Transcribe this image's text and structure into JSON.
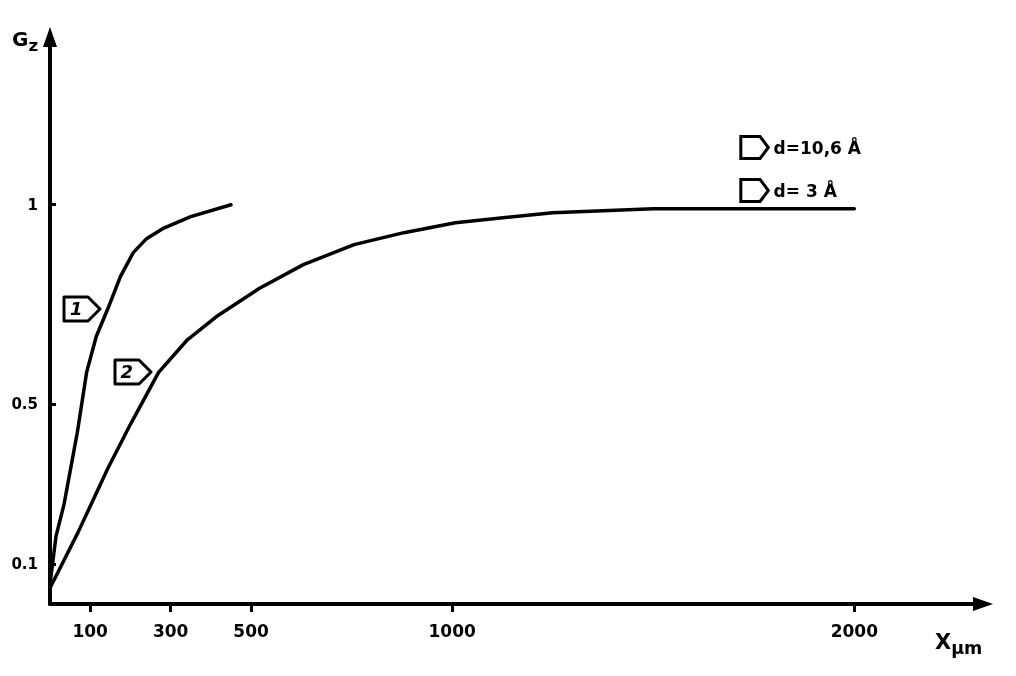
{
  "chart_data": {
    "type": "line",
    "xlabel": "X$_{μm}$",
    "ylabel": "G$_{z}$",
    "xlim": [
      0,
      2300
    ],
    "xticks": [
      100,
      300,
      500,
      1000,
      2000
    ],
    "ylim": [
      0,
      1.4
    ],
    "yticks": [
      0.1,
      0.5,
      1
    ],
    "grid": false,
    "marker": "none",
    "line_style": "solid",
    "legend": "top right",
    "series": [
      {
        "name": "d=10,6 Å",
        "color": "#000000",
        "x": [
          0,
          15,
          35,
          68,
          91,
          115,
          144,
          175,
          207,
          240,
          280,
          350,
          450
        ],
        "values": [
          0.05,
          0.17,
          0.25,
          0.43,
          0.58,
          0.67,
          0.74,
          0.82,
          0.88,
          0.915,
          0.94,
          0.97,
          1.0
        ]
      },
      {
        "name": "d= 3 Å",
        "color": "#000000",
        "x": [
          0,
          70,
          144,
          200,
          270,
          340,
          414,
          520,
          630,
          756,
          880,
          1008,
          1250,
          1500,
          1750,
          2000
        ],
        "values": [
          0.04,
          0.18,
          0.34,
          0.45,
          0.58,
          0.66,
          0.72,
          0.79,
          0.85,
          0.9,
          0.93,
          0.955,
          0.98,
          0.99,
          0.99,
          0.99
        ]
      }
    ],
    "annotations": [
      {
        "text": "1",
        "x": 144,
        "y": 0.74
      },
      {
        "text": "2",
        "x": 270,
        "y": 0.58
      }
    ]
  }
}
